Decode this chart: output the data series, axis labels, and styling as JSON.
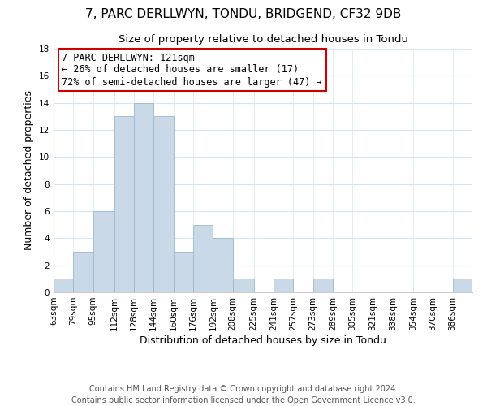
{
  "title": "7, PARC DERLLWYN, TONDU, BRIDGEND, CF32 9DB",
  "subtitle": "Size of property relative to detached houses in Tondu",
  "xlabel": "Distribution of detached houses by size in Tondu",
  "ylabel": "Number of detached properties",
  "bar_labels": [
    "63sqm",
    "79sqm",
    "95sqm",
    "112sqm",
    "128sqm",
    "144sqm",
    "160sqm",
    "176sqm",
    "192sqm",
    "208sqm",
    "225sqm",
    "241sqm",
    "257sqm",
    "273sqm",
    "289sqm",
    "305sqm",
    "321sqm",
    "338sqm",
    "354sqm",
    "370sqm",
    "386sqm"
  ],
  "bar_values": [
    1,
    3,
    6,
    13,
    14,
    13,
    3,
    5,
    4,
    1,
    0,
    1,
    0,
    1,
    0,
    0,
    0,
    0,
    0,
    0,
    1
  ],
  "bar_color": "#c9d9e8",
  "bar_edge_color": "#a0b8cc",
  "ylim": [
    0,
    18
  ],
  "yticks": [
    0,
    2,
    4,
    6,
    8,
    10,
    12,
    14,
    16,
    18
  ],
  "annotation_title": "7 PARC DERLLWYN: 121sqm",
  "annotation_line1": "← 26% of detached houses are smaller (17)",
  "annotation_line2": "72% of semi-detached houses are larger (47) →",
  "annotation_box_color": "#ffffff",
  "annotation_box_edge_color": "#cc0000",
  "footer_line1": "Contains HM Land Registry data © Crown copyright and database right 2024.",
  "footer_line2": "Contains public sector information licensed under the Open Government Licence v3.0.",
  "title_fontsize": 11,
  "subtitle_fontsize": 9.5,
  "axis_label_fontsize": 9,
  "tick_fontsize": 7.5,
  "annotation_fontsize": 8.5,
  "footer_fontsize": 7,
  "grid_color": "#d8e4ee",
  "background_color": "#ffffff",
  "bin_edges": [
    63,
    79,
    95,
    112,
    128,
    144,
    160,
    176,
    192,
    208,
    225,
    241,
    257,
    273,
    289,
    305,
    321,
    338,
    354,
    370,
    386,
    402
  ]
}
